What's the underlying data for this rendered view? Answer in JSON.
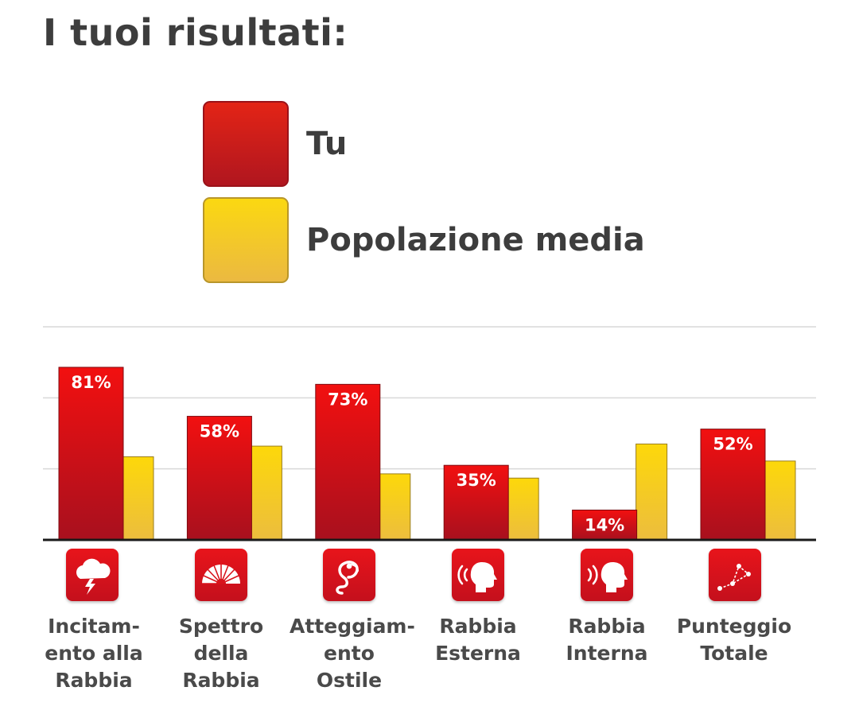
{
  "title": "I tuoi risultati:",
  "legend": [
    {
      "label": "Tu",
      "color": "#d8141c"
    },
    {
      "label": "Popolazione media",
      "color": "#f7d020"
    }
  ],
  "categories": [
    {
      "label": "Incitam-\nento alla\nRabbia",
      "icon": "storm-cloud-icon"
    },
    {
      "label": "Spettro\ndella\nRabbia",
      "icon": "spectrum-fan-icon"
    },
    {
      "label": "Atteggiam-\nento Ostile",
      "icon": "cobra-icon"
    },
    {
      "label": "Rabbia\nEsterna",
      "icon": "speaking-head-outward-icon"
    },
    {
      "label": "Rabbia\nInterna",
      "icon": "speaking-head-inward-icon"
    },
    {
      "label": "Punteggio\nTotale",
      "icon": "constellation-icon"
    }
  ],
  "chart_data": {
    "type": "bar",
    "categories": [
      "Incitam-ento alla Rabbia",
      "Spettro della Rabbia",
      "Atteggiam-ento Ostile",
      "Rabbia Esterna",
      "Rabbia Interna",
      "Punteggio Totale"
    ],
    "series": [
      {
        "name": "Tu",
        "values": [
          81,
          58,
          73,
          35,
          14,
          52
        ],
        "color": "#d8141c",
        "data_labels": [
          "81%",
          "58%",
          "73%",
          "35%",
          "14%",
          "52%"
        ]
      },
      {
        "name": "Popolazione media",
        "values": [
          39,
          44,
          31,
          29,
          45,
          37
        ],
        "color": "#f7d020"
      }
    ],
    "ylim": [
      0,
      100
    ],
    "grid": true,
    "legend_position": "top"
  }
}
